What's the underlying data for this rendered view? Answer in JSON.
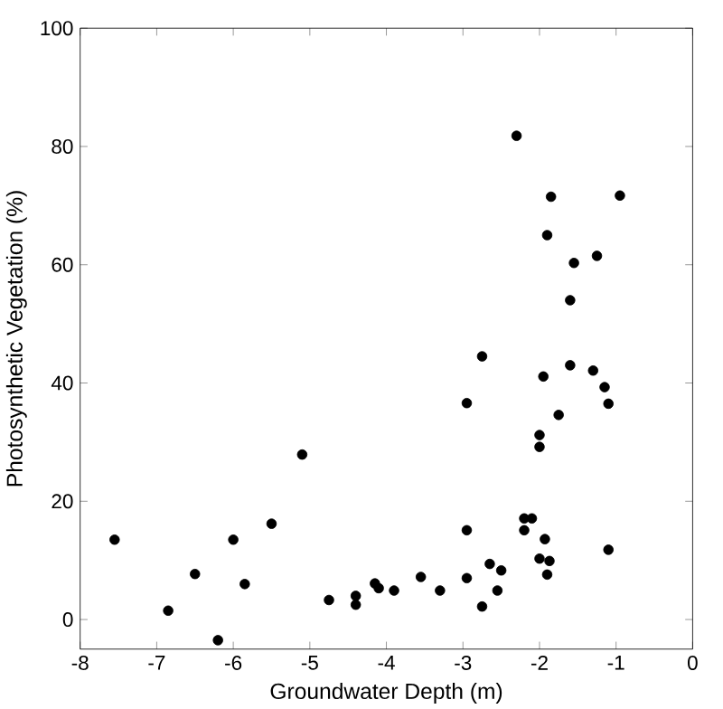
{
  "chart_data": {
    "type": "scatter",
    "xlabel": "Groundwater Depth (m)",
    "ylabel": "Photosynthetic Vegetation (%)",
    "xlim": [
      -8,
      0
    ],
    "ylim": [
      -5,
      100
    ],
    "xticks": [
      -8,
      -7,
      -6,
      -5,
      -4,
      -3,
      -2,
      -1,
      0
    ],
    "yticks": [
      0,
      20,
      40,
      60,
      80,
      100
    ],
    "marker": "circle",
    "grid": false,
    "series": [
      {
        "color": "#000000",
        "x": [
          -7.55,
          -6.85,
          -6.5,
          -6.2,
          -6.0,
          -5.85,
          -5.5,
          -5.1,
          -4.75,
          -4.4,
          -4.4,
          -4.15,
          -4.1,
          -3.9,
          -3.55,
          -3.3,
          -2.95,
          -2.95,
          -2.95,
          -2.75,
          -2.75,
          -2.65,
          -2.55,
          -2.5,
          -2.3,
          -2.2,
          -2.2,
          -2.1,
          -2.0,
          -2.0,
          -2.0,
          -1.95,
          -1.93,
          -1.9,
          -1.87,
          -1.9,
          -1.85,
          -1.75,
          -1.6,
          -1.6,
          -1.55,
          -1.3,
          -1.25,
          -1.15,
          -1.1,
          -1.1,
          -0.95
        ],
        "values": [
          13.5,
          1.5,
          7.7,
          -3.5,
          13.5,
          6,
          16.2,
          27.9,
          3.3,
          4,
          2.5,
          6.1,
          5.3,
          4.9,
          7.2,
          4.9,
          7,
          15.1,
          36.6,
          44.5,
          2.2,
          9.4,
          4.9,
          8.3,
          81.8,
          17.1,
          15.1,
          17.1,
          10.3,
          29.2,
          31.2,
          41.1,
          13.6,
          65,
          9.9,
          7.6,
          71.5,
          34.6,
          54,
          43,
          60.3,
          42.1,
          61.5,
          39.3,
          11.8,
          36.5,
          71.7
        ]
      }
    ]
  }
}
